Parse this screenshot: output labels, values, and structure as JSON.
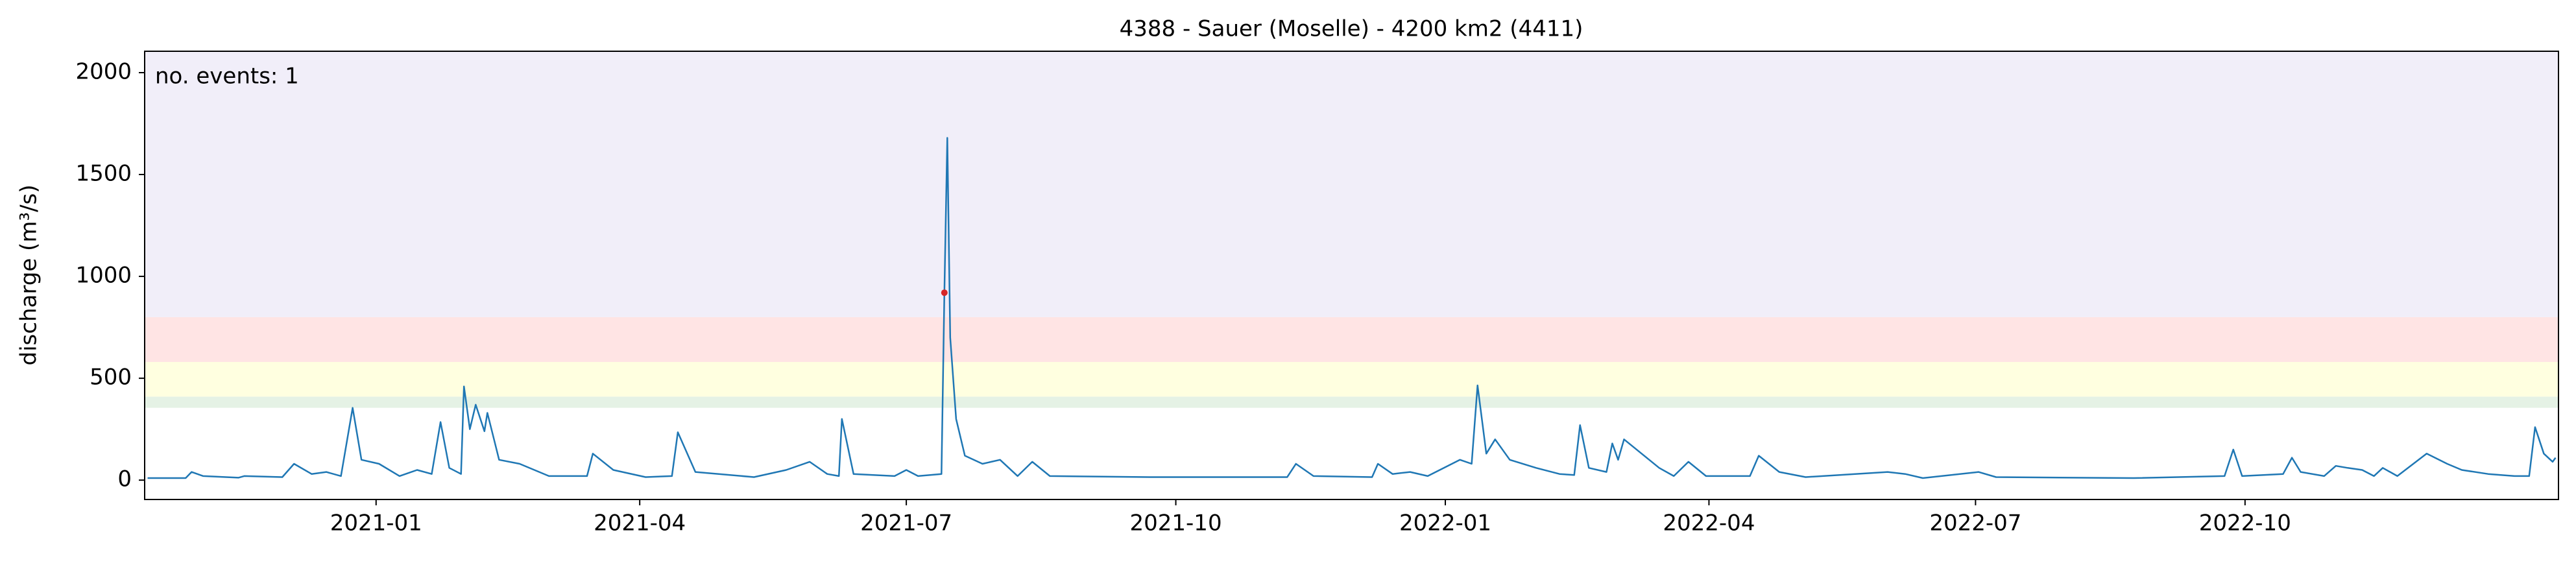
{
  "chart_data": {
    "type": "line",
    "title": "4388 - Sauer (Moselle) - 4200 km2 (4411)",
    "y_label": "discharge (m³/s)",
    "annotation": "no. events: 1",
    "annotation_color": "#ff0000",
    "xlim": [
      "2020-10-14",
      "2023-01-16"
    ],
    "xticks": [
      "2021-01",
      "2021-04",
      "2021-07",
      "2021-10",
      "2022-01",
      "2022-04",
      "2022-07",
      "2022-10"
    ],
    "ylim": [
      -95,
      2105
    ],
    "yticks": [
      0,
      500,
      1000,
      1500,
      2000
    ],
    "thresholds": [
      355,
      410,
      580,
      800
    ],
    "threshold_colors": [
      "#e5f2e5",
      "#ffffe0",
      "#ffe4e4",
      "#f1eef9"
    ],
    "x": [
      "2020-10-15",
      "2020-10-28",
      "2020-10-30",
      "2020-11-03",
      "2020-11-15",
      "2020-11-17",
      "2020-11-30",
      "2020-12-04",
      "2020-12-10",
      "2020-12-15",
      "2020-12-20",
      "2020-12-24",
      "2020-12-27",
      "2021-01-02",
      "2021-01-09",
      "2021-01-15",
      "2021-01-20",
      "2021-01-23",
      "2021-01-26",
      "2021-01-30",
      "2021-01-31",
      "2021-02-02",
      "2021-02-04",
      "2021-02-07",
      "2021-02-08",
      "2021-02-12",
      "2021-02-19",
      "2021-03-01",
      "2021-03-14",
      "2021-03-16",
      "2021-03-23",
      "2021-04-03",
      "2021-04-12",
      "2021-04-14",
      "2021-04-20",
      "2021-05-10",
      "2021-05-21",
      "2021-05-29",
      "2021-06-04",
      "2021-06-08",
      "2021-06-09",
      "2021-06-13",
      "2021-06-27",
      "2021-07-01",
      "2021-07-05",
      "2021-07-13",
      "2021-07-14",
      "2021-07-15",
      "2021-07-16",
      "2021-07-18",
      "2021-07-21",
      "2021-07-27",
      "2021-08-02",
      "2021-08-08",
      "2021-08-13",
      "2021-08-19",
      "2021-09-22",
      "2021-11-08",
      "2021-11-11",
      "2021-11-17",
      "2021-12-07",
      "2021-12-09",
      "2021-12-14",
      "2021-12-20",
      "2021-12-26",
      "2022-01-06",
      "2022-01-10",
      "2022-01-12",
      "2022-01-15",
      "2022-01-18",
      "2022-01-23",
      "2022-02-01",
      "2022-02-09",
      "2022-02-14",
      "2022-02-16",
      "2022-02-19",
      "2022-02-25",
      "2022-02-27",
      "2022-03-01",
      "2022-03-03",
      "2022-03-09",
      "2022-03-15",
      "2022-03-20",
      "2022-03-25",
      "2022-03-31",
      "2022-04-15",
      "2022-04-18",
      "2022-04-25",
      "2022-05-04",
      "2022-06-01",
      "2022-06-07",
      "2022-06-13",
      "2022-07-02",
      "2022-07-08",
      "2022-08-24",
      "2022-09-24",
      "2022-09-27",
      "2022-09-30",
      "2022-10-14",
      "2022-10-17",
      "2022-10-20",
      "2022-10-28",
      "2022-11-01",
      "2022-11-05",
      "2022-11-10",
      "2022-11-14",
      "2022-11-17",
      "2022-11-22",
      "2022-12-02",
      "2022-12-09",
      "2022-12-14",
      "2022-12-23",
      "2023-01-01",
      "2023-01-06",
      "2023-01-08",
      "2023-01-11",
      "2023-01-14",
      "2023-01-15"
    ],
    "series": [
      {
        "name": "discharge",
        "color": "#1f77b4",
        "values": [
          10,
          10,
          40,
          20,
          12,
          20,
          15,
          80,
          30,
          40,
          20,
          355,
          100,
          80,
          20,
          50,
          30,
          285,
          60,
          30,
          460,
          250,
          370,
          240,
          330,
          100,
          80,
          20,
          20,
          130,
          50,
          15,
          20,
          235,
          40,
          15,
          50,
          90,
          30,
          20,
          300,
          30,
          20,
          50,
          20,
          30,
          920,
          1680,
          700,
          300,
          120,
          80,
          100,
          20,
          90,
          20,
          15,
          15,
          80,
          20,
          15,
          80,
          30,
          40,
          20,
          100,
          80,
          465,
          130,
          200,
          100,
          60,
          30,
          25,
          270,
          60,
          40,
          180,
          100,
          200,
          130,
          60,
          20,
          90,
          20,
          20,
          120,
          40,
          15,
          40,
          30,
          10,
          40,
          15,
          10,
          20,
          150,
          20,
          30,
          110,
          40,
          20,
          70,
          60,
          50,
          20,
          60,
          20,
          130,
          80,
          50,
          30,
          20,
          20,
          260,
          130,
          90,
          110
        ]
      }
    ],
    "events": {
      "name": "event",
      "color": "#d62728",
      "x": [
        "2021-07-14"
      ],
      "values": [
        920
      ]
    }
  }
}
